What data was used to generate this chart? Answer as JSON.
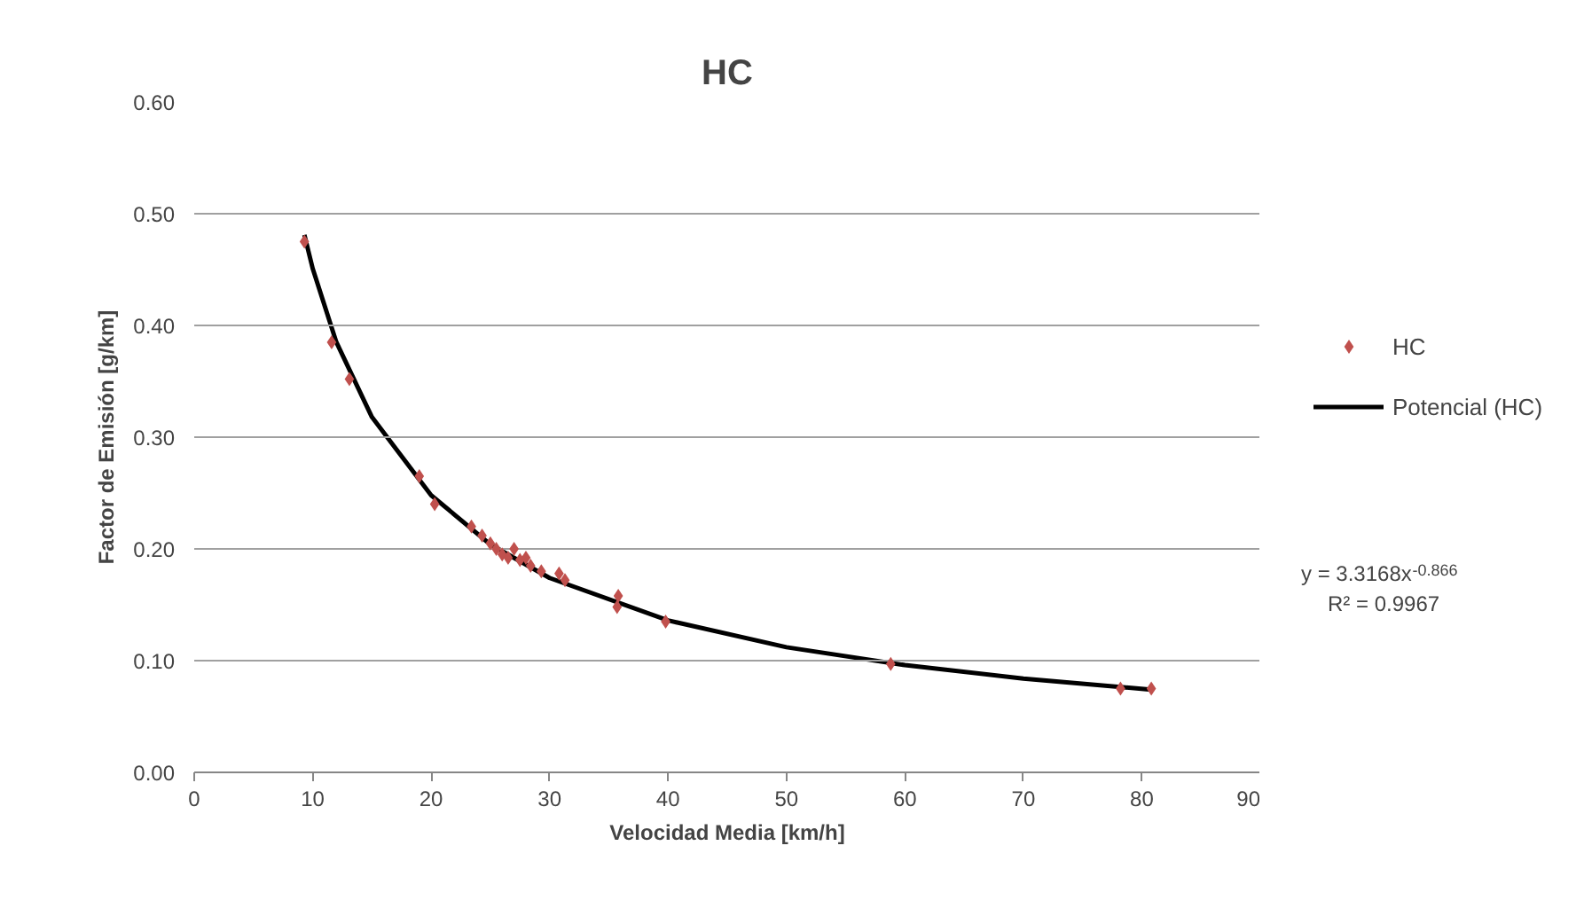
{
  "chart_data": {
    "type": "scatter",
    "title": "HC",
    "xlabel": "Velocidad Media [km/h]",
    "ylabel": "Factor de Emisión [g/km]",
    "xlim": [
      0,
      90
    ],
    "xticks": [
      0,
      10,
      20,
      30,
      40,
      50,
      60,
      70,
      80,
      90
    ],
    "ylim": [
      0,
      0.6
    ],
    "yticks": [
      {
        "value": 0,
        "label": "0.00"
      },
      {
        "value": 0.1,
        "label": "0.10"
      },
      {
        "value": 0.2,
        "label": "0.20"
      },
      {
        "value": 0.3,
        "label": "0.30"
      },
      {
        "value": 0.4,
        "label": "0.40"
      },
      {
        "value": 0.5,
        "label": "0.50"
      },
      {
        "value": 0.6,
        "label": "0.60"
      }
    ],
    "grid": "y",
    "legend": "right",
    "series": [
      {
        "name": "HC",
        "marker": "diamond",
        "color": "#c0504d",
        "x": [
          9.3,
          11.6,
          13.1,
          19.0,
          20.3,
          23.4,
          24.3,
          25.0,
          25.5,
          26.0,
          26.5,
          27.0,
          27.5,
          28.0,
          28.4,
          29.3,
          30.8,
          31.3,
          35.8,
          35.7,
          39.8,
          58.8,
          78.2,
          80.8
        ],
        "values": [
          0.475,
          0.385,
          0.352,
          0.265,
          0.24,
          0.22,
          0.212,
          0.205,
          0.2,
          0.195,
          0.192,
          0.2,
          0.19,
          0.192,
          0.185,
          0.18,
          0.178,
          0.172,
          0.158,
          0.148,
          0.135,
          0.097,
          0.075,
          0.075
        ]
      },
      {
        "name": "Potencial (HC)",
        "type": "line",
        "color": "#000000",
        "line_style": "solid",
        "x": [
          9.3,
          10,
          12,
          15,
          20,
          25,
          30,
          40,
          50,
          60,
          70,
          80.8
        ],
        "values": [
          0.481,
          0.451,
          0.385,
          0.318,
          0.248,
          0.204,
          0.174,
          0.136,
          0.112,
          0.096,
          0.084,
          0.074
        ]
      }
    ],
    "annotations": [
      "y = 3.3168x$^{-0.866}$",
      "R² = 0.9967"
    ]
  }
}
